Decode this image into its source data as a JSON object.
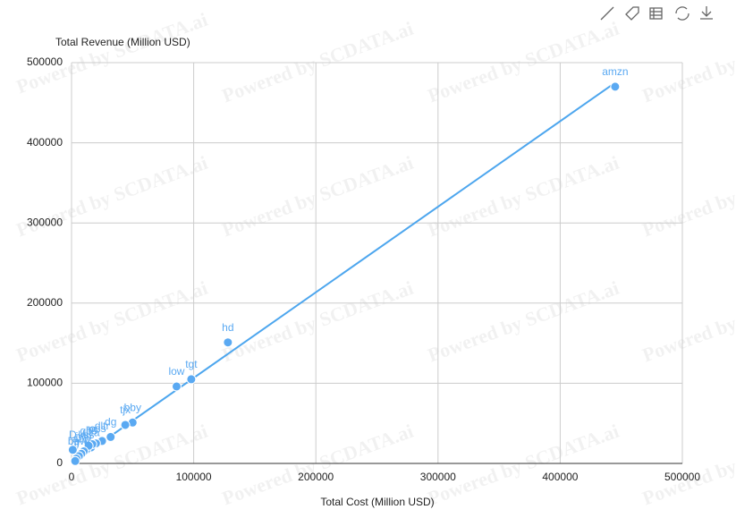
{
  "chart_data": {
    "type": "scatter",
    "x_label": "Total Cost (Million USD)",
    "y_label": "Total Revenue (Million USD)",
    "watermark": "Powered by SCDATA.ai",
    "color": "#5aa9f2",
    "labels": [
      "amzn",
      "hd",
      "tgt",
      "low",
      "bby",
      "tjx",
      "dg",
      "dltr",
      "ross",
      "ulta",
      "kss",
      "m",
      "gps",
      "jwn",
      "aap",
      "bbwi",
      "fl",
      "w",
      "D"
    ],
    "x": [
      445000,
      128000,
      98000,
      86000,
      50000,
      44000,
      32000,
      25000,
      20000,
      16000,
      12000,
      17000,
      14000,
      10000,
      8000,
      6000,
      4000,
      3000,
      1000
    ],
    "y": [
      470000,
      151000,
      105000,
      96000,
      51000,
      48000,
      33000,
      28000,
      25000,
      20000,
      17000,
      24000,
      22000,
      15000,
      12000,
      9000,
      6000,
      3000,
      17000
    ],
    "trendline": {
      "color": "#4da6ee",
      "x": [
        0,
        445000
      ],
      "y": [
        0,
        475000
      ]
    },
    "xlim": [
      0,
      500000
    ],
    "ylim": [
      0,
      500000
    ],
    "xticks": [
      0,
      100000,
      200000,
      300000,
      400000,
      500000
    ],
    "yticks": [
      0,
      100000,
      200000,
      300000,
      400000,
      500000
    ],
    "grid": true
  }
}
